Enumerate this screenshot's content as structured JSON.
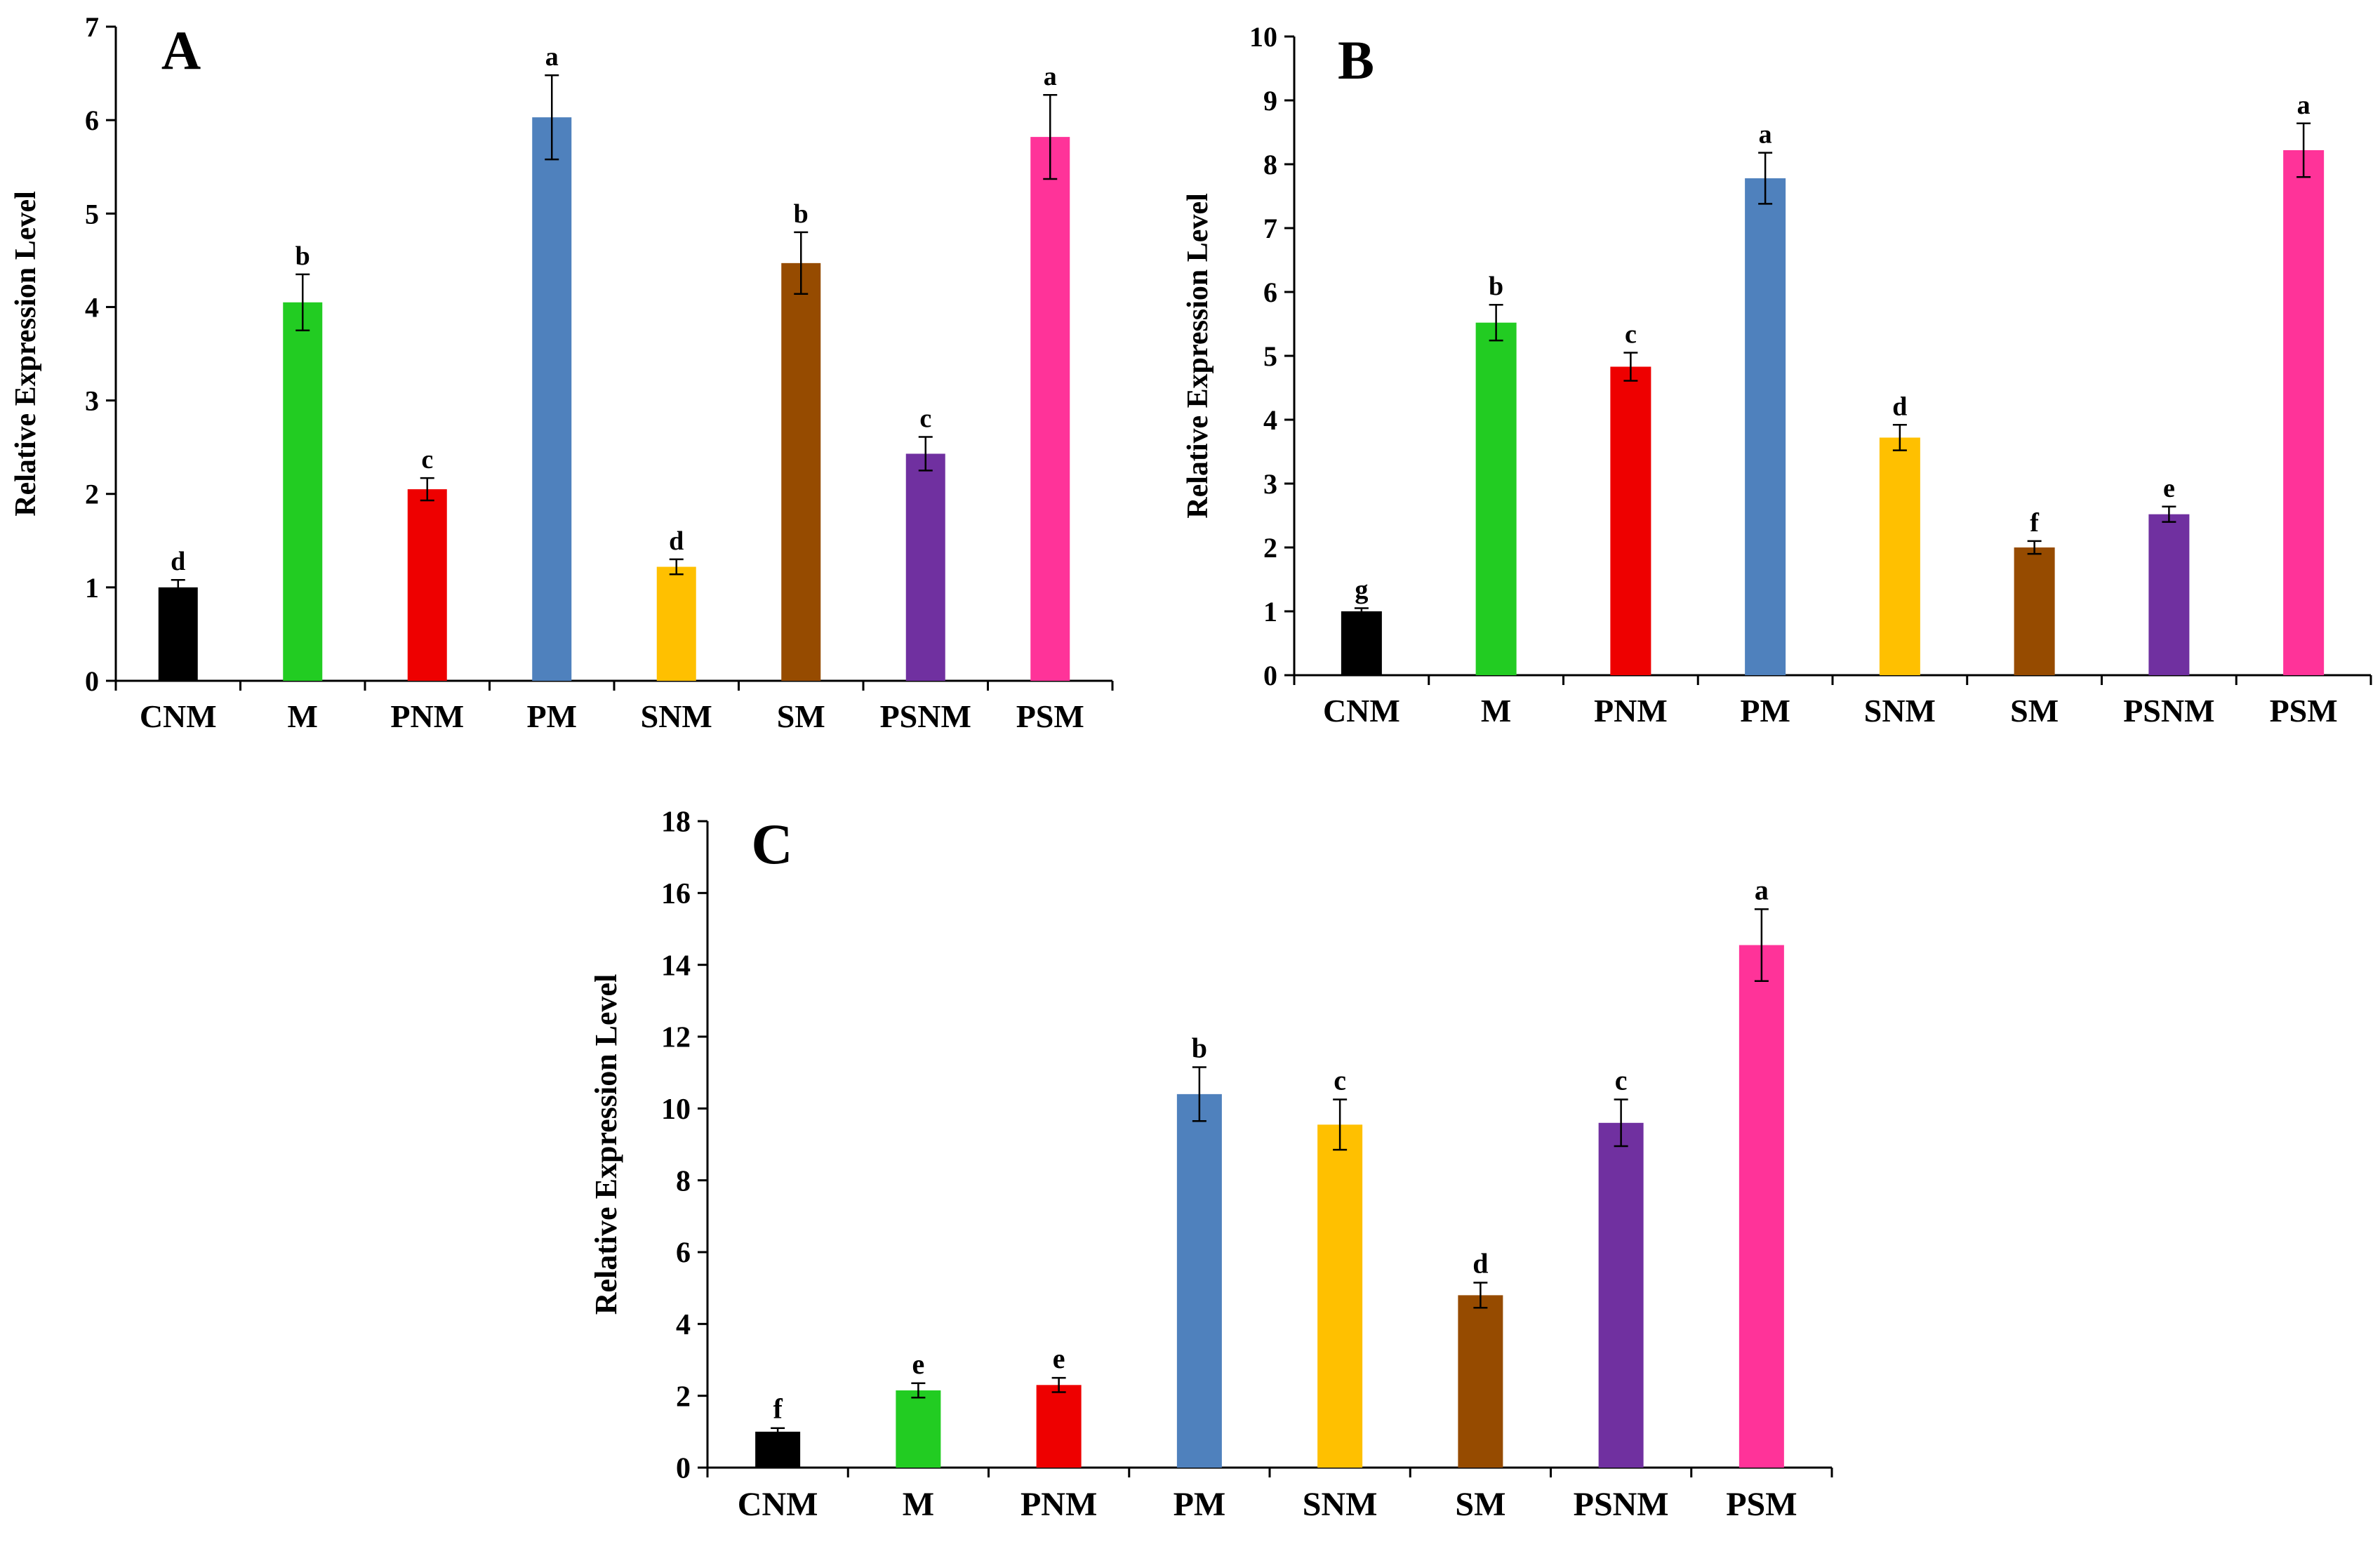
{
  "chart_data": [
    {
      "type": "bar",
      "panel_label": "A",
      "ylabel": "Relative Expression Level",
      "xlabel": "",
      "ylim": [
        0,
        7
      ],
      "yticks": [
        0,
        1,
        2,
        3,
        4,
        5,
        6,
        7
      ],
      "categories": [
        "CNM",
        "M",
        "PNM",
        "PM",
        "SNM",
        "SM",
        "PSNM",
        "PSM"
      ],
      "values": [
        1.0,
        4.05,
        2.05,
        6.03,
        1.22,
        4.47,
        2.43,
        5.82
      ],
      "errors": [
        0.08,
        0.3,
        0.12,
        0.45,
        0.08,
        0.33,
        0.18,
        0.45
      ],
      "significance": [
        "d",
        "b",
        "c",
        "a",
        "d",
        "b",
        "c",
        "a"
      ],
      "colors": [
        "#000000",
        "#22cc22",
        "#ee0000",
        "#4f81bd",
        "#ffc000",
        "#964B00",
        "#7030a0",
        "#ff3399"
      ],
      "grid": false,
      "legend": "none"
    },
    {
      "type": "bar",
      "panel_label": "B",
      "ylabel": "Relative Expression Level",
      "xlabel": "",
      "ylim": [
        0,
        10
      ],
      "yticks": [
        0,
        1,
        2,
        3,
        4,
        5,
        6,
        7,
        8,
        9,
        10
      ],
      "categories": [
        "CNM",
        "M",
        "PNM",
        "PM",
        "SNM",
        "SM",
        "PSNM",
        "PSM"
      ],
      "values": [
        1.0,
        5.52,
        4.83,
        7.78,
        3.72,
        2.0,
        2.52,
        8.22
      ],
      "errors": [
        0.05,
        0.28,
        0.22,
        0.4,
        0.2,
        0.1,
        0.12,
        0.42
      ],
      "significance": [
        "g",
        "b",
        "c",
        "a",
        "d",
        "f",
        "e",
        "a"
      ],
      "colors": [
        "#000000",
        "#22cc22",
        "#ee0000",
        "#4f81bd",
        "#ffc000",
        "#964B00",
        "#7030a0",
        "#ff3399"
      ],
      "grid": false,
      "legend": "none"
    },
    {
      "type": "bar",
      "panel_label": "C",
      "ylabel": "Relative Expression Level",
      "xlabel": "",
      "ylim": [
        0,
        18
      ],
      "yticks": [
        0,
        2,
        4,
        6,
        8,
        10,
        12,
        14,
        16,
        18
      ],
      "categories": [
        "CNM",
        "M",
        "PNM",
        "PM",
        "SNM",
        "SM",
        "PSNM",
        "PSM"
      ],
      "values": [
        1.0,
        2.15,
        2.3,
        10.4,
        9.55,
        4.8,
        9.6,
        14.55
      ],
      "errors": [
        0.1,
        0.2,
        0.2,
        0.75,
        0.7,
        0.35,
        0.65,
        1.0
      ],
      "significance": [
        "f",
        "e",
        "e",
        "b",
        "c",
        "d",
        "c",
        "a"
      ],
      "colors": [
        "#000000",
        "#22cc22",
        "#ee0000",
        "#4f81bd",
        "#ffc000",
        "#964B00",
        "#7030a0",
        "#ff3399"
      ],
      "grid": false,
      "legend": "none"
    }
  ]
}
